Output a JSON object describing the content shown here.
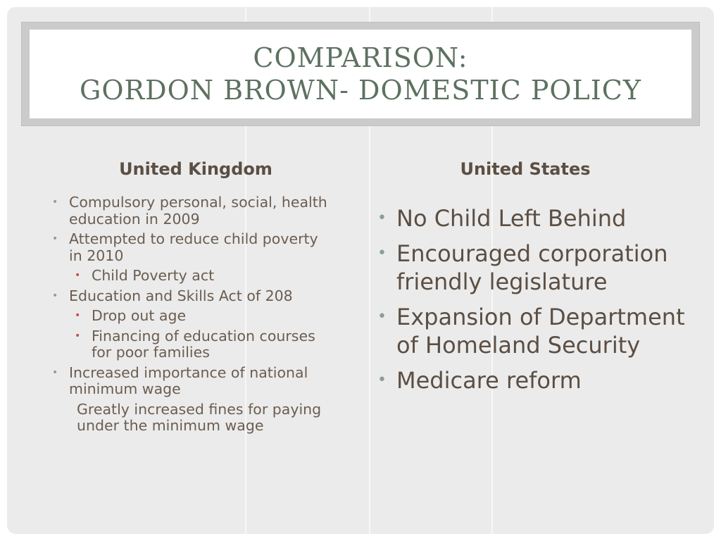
{
  "slide": {
    "title_lines": [
      "COMPARISON:",
      "GORDON BROWN- DOMESTIC POLICY"
    ]
  },
  "left": {
    "heading": "United Kingdom",
    "items": [
      {
        "level": 1,
        "text": "Compulsory personal, social, health education in 2009"
      },
      {
        "level": 1,
        "text": "Attempted to reduce child poverty in 2010"
      },
      {
        "level": 2,
        "text": "Child Poverty act"
      },
      {
        "level": 1,
        "text": "Education and Skills Act of 208"
      },
      {
        "level": 2,
        "text": "Drop out age"
      },
      {
        "level": 2,
        "text": "Financing of education courses for poor families"
      },
      {
        "level": 1,
        "text": "Increased importance of national minimum wage"
      },
      {
        "level": 0,
        "text": "Greatly increased fines for paying under the minimum wage"
      }
    ]
  },
  "right": {
    "heading": "United States",
    "items": [
      {
        "level": 1,
        "text": "No Child Left Behind"
      },
      {
        "level": 1,
        "text": "Encouraged corporation friendly legislature"
      },
      {
        "level": 1,
        "text": "Expansion of Department of Homeland Security"
      },
      {
        "level": 1,
        "text": "Medicare reform"
      }
    ]
  },
  "colors": {
    "title": "#5d7160",
    "body_text": "#6b5d50",
    "bullet_primary": "#8c9f8e",
    "bullet_secondary": "#c0504d"
  },
  "icons": {
    "bullet": "bullet-dot-icon"
  }
}
